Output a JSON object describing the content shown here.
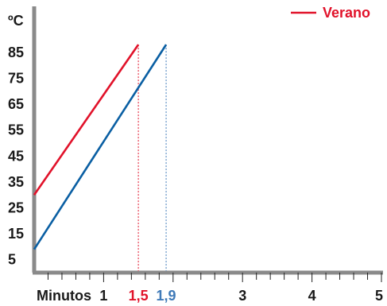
{
  "chart_data": {
    "type": "line",
    "y_unit": "ºC",
    "x_title": "Minutos",
    "y_ticks": [
      5,
      15,
      25,
      35,
      45,
      55,
      65,
      75,
      85
    ],
    "x_ticks": [
      {
        "value": 1,
        "label": "1",
        "color": "#1a1a1a"
      },
      {
        "value": 1.5,
        "label": "1,5",
        "color": "#e1122a"
      },
      {
        "value": 1.9,
        "label": "1,9",
        "color": "#3f7ab8"
      },
      {
        "value": 3,
        "label": "3",
        "color": "#1a1a1a"
      },
      {
        "value": 4,
        "label": "4",
        "color": "#1a1a1a"
      },
      {
        "value": 5,
        "label": "5",
        "color": "#1a1a1a"
      }
    ],
    "xlim": [
      0,
      5
    ],
    "ylim": [
      0,
      92
    ],
    "series": [
      {
        "name": "Verano",
        "color": "#e1122a",
        "x": [
          0,
          1.5
        ],
        "y": [
          30,
          88
        ]
      },
      {
        "color": "#0a5fa3",
        "x": [
          0,
          1.9
        ],
        "y": [
          9,
          88
        ]
      }
    ],
    "reference_lines": [
      {
        "x": 1.5,
        "color": "#e1122a"
      },
      {
        "x": 1.9,
        "color": "#3f7ab8"
      }
    ],
    "legend": {
      "position": "top-right",
      "entries": [
        "Verano"
      ]
    },
    "grid": false
  }
}
